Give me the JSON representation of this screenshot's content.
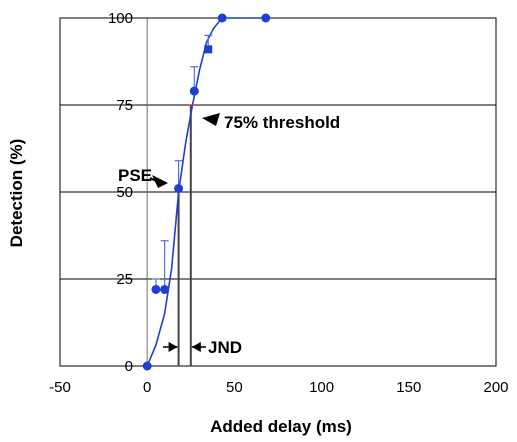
{
  "chart_data": {
    "type": "scatter",
    "title": "",
    "xlabel": "Added delay (ms)",
    "ylabel": "Detection (%)",
    "xlim": [
      -50,
      200
    ],
    "ylim": [
      0,
      100
    ],
    "x_ticks": [
      -50,
      0,
      50,
      100,
      150,
      200
    ],
    "y_ticks": [
      0,
      25,
      50,
      75,
      100
    ],
    "grid": "horizontal",
    "legend": "none",
    "series": [
      {
        "points": [
          {
            "x": 0,
            "y": 0,
            "err": 0
          },
          {
            "x": 5,
            "y": 22,
            "err": 3
          },
          {
            "x": 10,
            "y": 22,
            "err": 14
          },
          {
            "x": 18,
            "y": 51,
            "err": 8
          },
          {
            "x": 27,
            "y": 79,
            "err": 7
          },
          {
            "x": 35,
            "y": 91,
            "err": 4
          },
          {
            "x": 43,
            "y": 100,
            "err": 2
          },
          {
            "x": 68,
            "y": 100,
            "err": 2
          }
        ],
        "fit_curve": [
          [
            0,
            0
          ],
          [
            5,
            6
          ],
          [
            10,
            15
          ],
          [
            14,
            28
          ],
          [
            18,
            50
          ],
          [
            22,
            64
          ],
          [
            26,
            75
          ],
          [
            30,
            85
          ],
          [
            34,
            93
          ],
          [
            38,
            97
          ],
          [
            43,
            100
          ],
          [
            68,
            100
          ]
        ],
        "color": "#1f3fd0"
      }
    ],
    "reference_lines": {
      "zero_x": 0,
      "pse_x": 18,
      "threshold_x": 25
    },
    "annotations": [
      {
        "text": "PSE",
        "x": -17,
        "y": 51
      },
      {
        "text": "75% threshold",
        "x": 31,
        "y": 70
      },
      {
        "text": "JND",
        "x": 30,
        "y": 5
      }
    ],
    "colors": {
      "series": "#1f3fd0",
      "error_bar": "#5a6ee0",
      "crossing": "#e0283a",
      "grid": "#000000"
    }
  }
}
